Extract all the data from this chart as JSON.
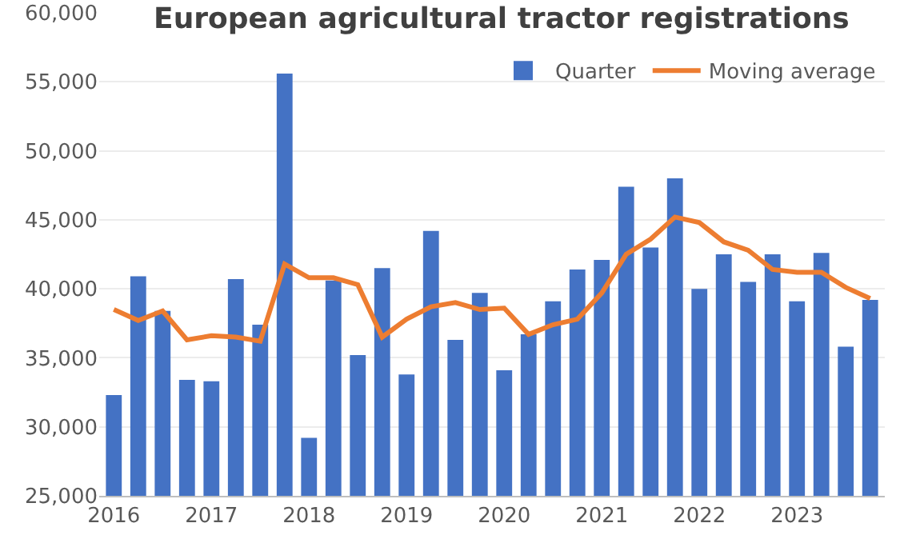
{
  "chart_data": {
    "type": "bar",
    "title": "European agricultural tractor registrations",
    "categories": [
      "2016",
      null,
      null,
      null,
      "2017",
      null,
      null,
      null,
      "2018",
      null,
      null,
      null,
      "2019",
      null,
      null,
      null,
      "2020",
      null,
      null,
      null,
      "2021",
      null,
      null,
      null,
      "2022",
      null,
      null,
      null,
      "2023",
      null,
      null,
      null
    ],
    "series": [
      {
        "name": "Quarter",
        "color": "#4472c4",
        "values": [
          32300,
          40900,
          38400,
          33400,
          33300,
          40700,
          37400,
          55600,
          29200,
          40600,
          35200,
          41500,
          33800,
          44200,
          36300,
          39700,
          34100,
          36700,
          39100,
          41400,
          42100,
          47400,
          43000,
          48000,
          40000,
          42500,
          40500,
          42500,
          39100,
          42600,
          35800,
          39200
        ]
      },
      {
        "name": "Moving average",
        "type": "line",
        "color": "#ed7d31",
        "values": [
          38500,
          37700,
          38400,
          36300,
          36600,
          36500,
          36200,
          41800,
          40800,
          40800,
          40300,
          36500,
          37800,
          38700,
          39000,
          38500,
          38600,
          36700,
          37400,
          37800,
          39700,
          42500,
          43600,
          45200,
          44800,
          43400,
          42800,
          41400,
          41200,
          41200,
          40100,
          39300
        ]
      }
    ],
    "ylim": [
      25000,
      60000
    ],
    "yticks": [
      {
        "value": 25000,
        "label": "25,000"
      },
      {
        "value": 30000,
        "label": "30,000"
      },
      {
        "value": 35000,
        "label": "35,000"
      },
      {
        "value": 40000,
        "label": "40,000"
      },
      {
        "value": 45000,
        "label": "45,000"
      },
      {
        "value": 50000,
        "label": "50,000"
      },
      {
        "value": 55000,
        "label": "55,000"
      },
      {
        "value": 60000,
        "label": "60,000"
      }
    ],
    "grid": true,
    "legend": "top right"
  }
}
